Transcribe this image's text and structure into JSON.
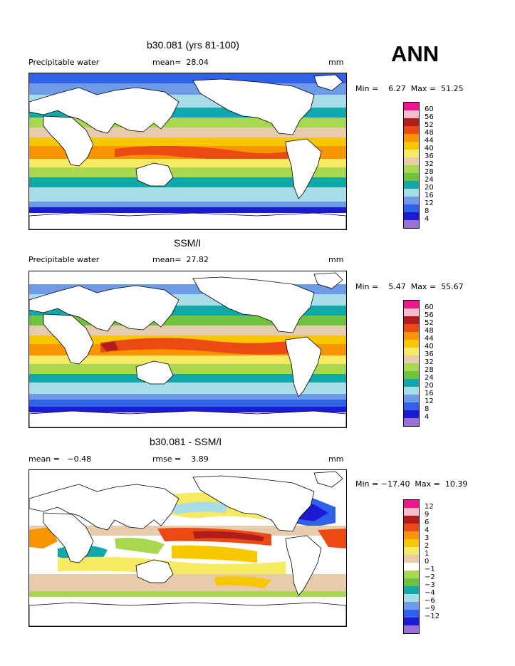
{
  "season": "ANN",
  "panels": [
    {
      "id": "model",
      "title": "b30.081 (yrs 81-100)",
      "left_label": "Precipitable water",
      "stat_label": "mean=  28.04",
      "units": "mm",
      "minmax": "Min =    6.27  Max =  51.25",
      "legend_colors": [
        "#9b6fd6",
        "#1b1bd1",
        "#2f62e8",
        "#6e9be8",
        "#a6dde8",
        "#10a8a8",
        "#6fc33e",
        "#a8d850",
        "#e6ccaa",
        "#f7ea63",
        "#f7c700",
        "#f79400",
        "#ec4a14",
        "#b11c1c",
        "#f6bccb",
        "#ec168f"
      ],
      "legend_ticks": [
        "4",
        "8",
        "12",
        "16",
        "20",
        "24",
        "28",
        "32",
        "36",
        "40",
        "44",
        "48",
        "52",
        "56",
        "60"
      ]
    },
    {
      "id": "obs",
      "title": "SSM/I",
      "left_label": "Precipitable water",
      "stat_label": "mean=  27.82",
      "units": "mm",
      "minmax": "Min =    5.47  Max =  55.67",
      "legend_colors": [
        "#9b6fd6",
        "#1b1bd1",
        "#2f62e8",
        "#6e9be8",
        "#a6dde8",
        "#10a8a8",
        "#6fc33e",
        "#a8d850",
        "#e6ccaa",
        "#f7ea63",
        "#f7c700",
        "#f79400",
        "#ec4a14",
        "#b11c1c",
        "#f6bccb",
        "#ec168f"
      ],
      "legend_ticks": [
        "4",
        "8",
        "12",
        "16",
        "20",
        "24",
        "28",
        "32",
        "36",
        "40",
        "44",
        "48",
        "52",
        "56",
        "60"
      ]
    },
    {
      "id": "diff",
      "title": "b30.081 - SSM/I",
      "left_label": "mean =   −0.48",
      "stat_label": "rmse =    3.89",
      "units": "mm",
      "minmax": "Min = −17.40  Max =  10.39",
      "legend_colors": [
        "#9b6fd6",
        "#1b1bd1",
        "#2f62e8",
        "#6e9be8",
        "#a6dde8",
        "#10a8a8",
        "#6fc33e",
        "#a8d850",
        "#ffffff",
        "#e6ccaa",
        "#f7ea63",
        "#f7c700",
        "#f79400",
        "#ec4a14",
        "#b11c1c",
        "#f6bccb",
        "#ec168f"
      ],
      "legend_ticks": [
        "−12",
        "−9",
        "−6",
        "−4",
        "−3",
        "−2",
        "−1",
        "0",
        "1",
        "2",
        "3",
        "4",
        "6",
        "9",
        "12"
      ]
    }
  ],
  "chart_data": [
    {
      "type": "heatmap",
      "title": "b30.081 (yrs 81-100)",
      "variable": "Precipitable water",
      "units": "mm",
      "mean": 28.04,
      "min": 6.27,
      "max": 51.25,
      "contour_levels": [
        4,
        8,
        12,
        16,
        20,
        24,
        28,
        32,
        36,
        40,
        44,
        48,
        52,
        56,
        60
      ]
    },
    {
      "type": "heatmap",
      "title": "SSM/I",
      "variable": "Precipitable water",
      "units": "mm",
      "mean": 27.82,
      "min": 5.47,
      "max": 55.67,
      "contour_levels": [
        4,
        8,
        12,
        16,
        20,
        24,
        28,
        32,
        36,
        40,
        44,
        48,
        52,
        56,
        60
      ]
    },
    {
      "type": "heatmap",
      "title": "b30.081 - SSM/I",
      "units": "mm",
      "mean": -0.48,
      "rmse": 3.89,
      "min": -17.4,
      "max": 10.39,
      "contour_levels": [
        -12,
        -9,
        -6,
        -4,
        -3,
        -2,
        -1,
        0,
        1,
        2,
        3,
        4,
        6,
        9,
        12
      ]
    }
  ]
}
